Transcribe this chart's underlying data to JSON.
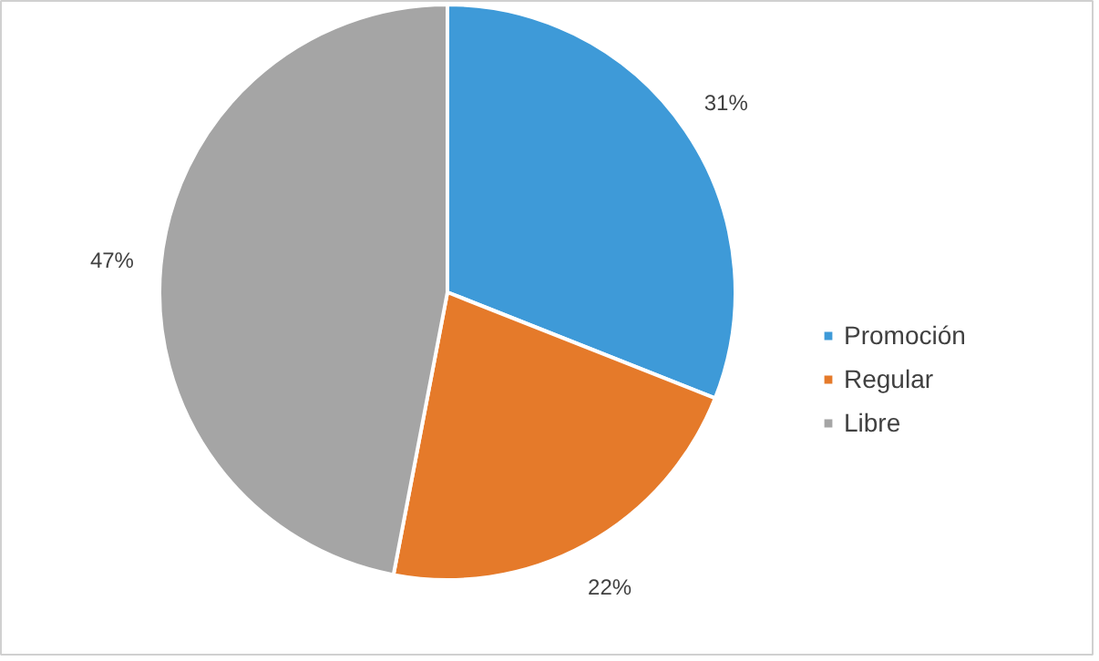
{
  "chart_data": {
    "type": "pie",
    "categories": [
      "Promoción",
      "Regular",
      "Libre"
    ],
    "values": [
      31,
      22,
      47
    ],
    "colors": [
      "#3e9ad8",
      "#e57a2a",
      "#a5a5a5"
    ],
    "value_labels": [
      "31%",
      "22%",
      "47%"
    ],
    "legend": "right"
  }
}
